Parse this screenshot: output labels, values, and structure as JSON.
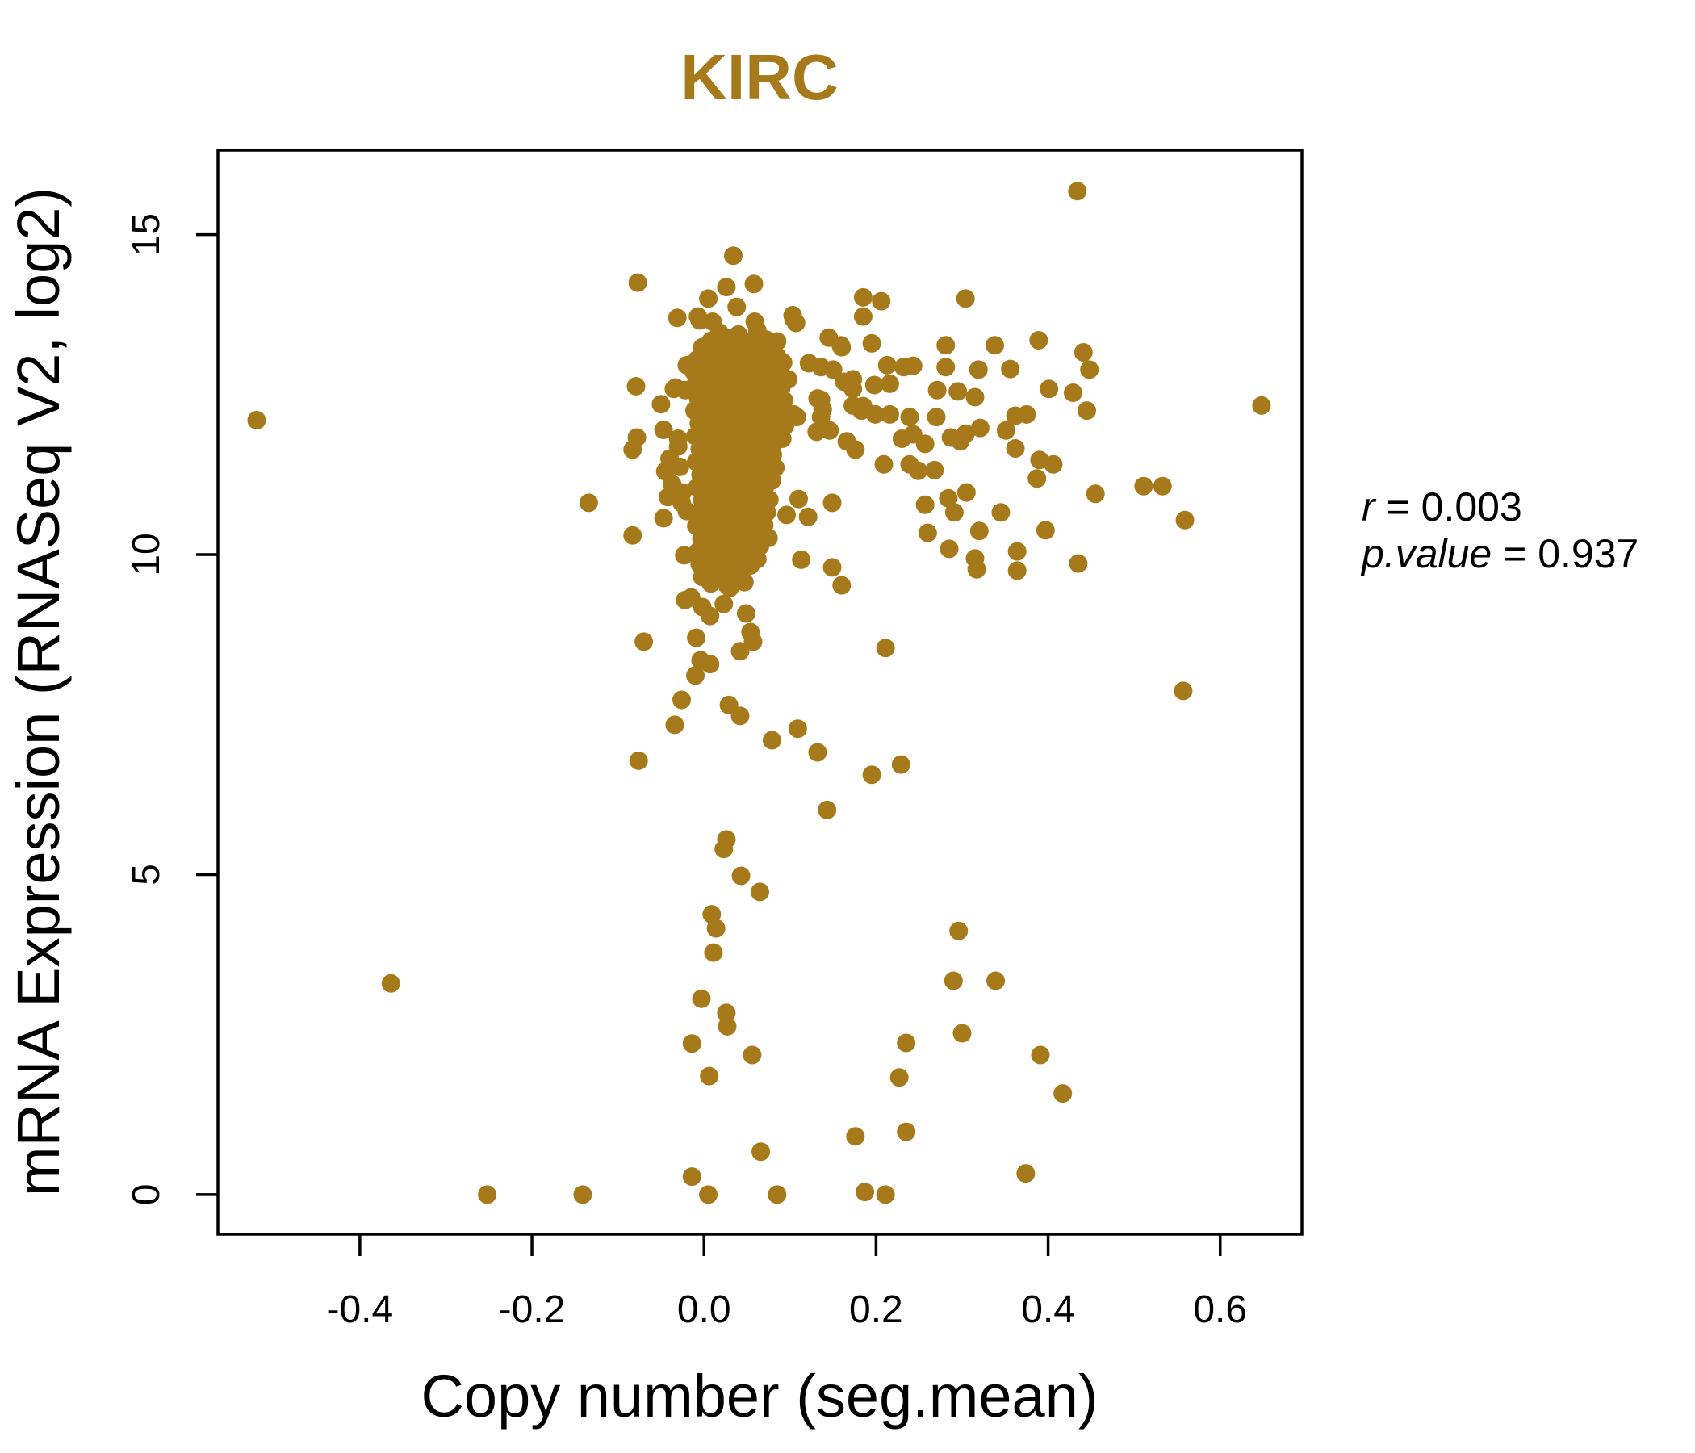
{
  "chart_data": {
    "type": "scatter",
    "title": "KIRC",
    "title_color": "#A6791B",
    "xlabel": "Copy number (seg.mean)",
    "ylabel": "mRNA Expression (RNASeq V2, log2)",
    "xlim": [
      -0.565,
      0.695
    ],
    "ylim": [
      -0.62,
      16.32
    ],
    "x_ticks": [
      -0.4,
      -0.2,
      0.0,
      0.2,
      0.4,
      0.6
    ],
    "x_tick_labels": [
      "-0.4",
      "-0.2",
      "0.0",
      "0.2",
      "0.4",
      "0.6"
    ],
    "y_ticks": [
      0,
      5,
      10,
      15
    ],
    "y_tick_labels": [
      "0",
      "5",
      "10",
      "15"
    ],
    "grid": false,
    "legend": null,
    "point_color": "#A6791B",
    "annotation_lines": [
      {
        "var": "r",
        "eq": " = ",
        "val": "0.003"
      },
      {
        "var": "p.value",
        "eq": " = ",
        "val": "0.937"
      }
    ],
    "points": [
      [
        -0.52,
        12.1
      ],
      [
        0.434,
        15.68
      ],
      [
        0.648,
        12.33
      ],
      [
        -0.364,
        3.3
      ],
      [
        -0.252,
        0
      ],
      [
        -0.141,
        0
      ],
      [
        0.005,
        0
      ],
      [
        0.085,
        0
      ],
      [
        0.187,
        0.04
      ],
      [
        0.211,
        0
      ],
      [
        0.374,
        0.33
      ],
      [
        -0.014,
        0.28
      ],
      [
        0.066,
        0.67
      ],
      [
        0.176,
        0.91
      ],
      [
        0.235,
        0.98
      ],
      [
        0.006,
        1.85
      ],
      [
        0.056,
        2.18
      ],
      [
        -0.014,
        2.36
      ],
      [
        0.026,
        2.84
      ],
      [
        0.027,
        2.63
      ],
      [
        -0.003,
        3.06
      ],
      [
        0.011,
        3.78
      ],
      [
        0.014,
        4.16
      ],
      [
        0.009,
        4.38
      ],
      [
        0.065,
        4.73
      ],
      [
        0.043,
        4.98
      ],
      [
        0.023,
        5.4
      ],
      [
        0.026,
        5.55
      ],
      [
        0.227,
        1.83
      ],
      [
        0.235,
        2.37
      ],
      [
        0.3,
        2.52
      ],
      [
        0.29,
        3.34
      ],
      [
        0.339,
        3.34
      ],
      [
        0.296,
        4.12
      ],
      [
        0.391,
        2.18
      ],
      [
        0.417,
        1.58
      ],
      [
        0.132,
        6.91
      ],
      [
        0.195,
        6.56
      ],
      [
        0.229,
        6.72
      ],
      [
        0.143,
        6.01
      ],
      [
        0.109,
        7.28
      ],
      [
        0.079,
        7.1
      ],
      [
        -0.076,
        6.78
      ],
      [
        -0.034,
        7.34
      ],
      [
        -0.026,
        7.73
      ],
      [
        -0.07,
        8.64
      ],
      [
        0.211,
        8.54
      ],
      [
        0.557,
        7.87
      ],
      [
        0.029,
        7.65
      ],
      [
        0.042,
        7.48
      ],
      [
        -0.01,
        8.11
      ],
      [
        -0.004,
        8.35
      ],
      [
        0.007,
        8.29
      ],
      [
        -0.009,
        8.7
      ],
      [
        0.054,
        8.79
      ],
      [
        0.057,
        8.64
      ],
      [
        0.042,
        8.49
      ],
      [
        0.149,
        9.8
      ],
      [
        0.16,
        9.52
      ],
      [
        0.113,
        9.92
      ],
      [
        -0.022,
        9.29
      ],
      [
        -0.015,
        9.33
      ],
      [
        -0.002,
        9.18
      ],
      [
        0.007,
        9.04
      ],
      [
        0.023,
        9.23
      ],
      [
        0.03,
        9.48
      ],
      [
        0.049,
        9.08
      ],
      [
        -0.023,
        9.99
      ],
      [
        -0.047,
        10.57
      ],
      [
        -0.083,
        10.3
      ],
      [
        -0.134,
        10.81
      ],
      [
        -0.026,
        10.81
      ],
      [
        0.096,
        10.62
      ],
      [
        0.11,
        10.87
      ],
      [
        0.121,
        10.59
      ],
      [
        0.149,
        10.81
      ],
      [
        0.305,
        10.97
      ],
      [
        0.364,
        10.05
      ],
      [
        0.364,
        9.75
      ],
      [
        0.257,
        10.78
      ],
      [
        0.284,
        10.88
      ],
      [
        0.291,
        10.66
      ],
      [
        0.26,
        10.34
      ],
      [
        0.32,
        10.37
      ],
      [
        0.285,
        10.09
      ],
      [
        0.315,
        9.94
      ],
      [
        0.317,
        9.77
      ],
      [
        0.345,
        10.66
      ],
      [
        0.397,
        10.38
      ],
      [
        0.559,
        10.54
      ],
      [
        0.435,
        9.86
      ],
      [
        0.455,
        10.95
      ],
      [
        0.511,
        11.07
      ],
      [
        0.533,
        11.07
      ],
      [
        0.39,
        11.48
      ],
      [
        0.406,
        11.41
      ],
      [
        0.387,
        11.19
      ],
      [
        0.375,
        12.19
      ],
      [
        0.401,
        12.59
      ],
      [
        0.429,
        12.53
      ],
      [
        0.445,
        12.25
      ],
      [
        0.448,
        12.89
      ],
      [
        0.441,
        13.16
      ],
      [
        0.389,
        13.35
      ],
      [
        0.034,
        14.67
      ],
      [
        0.026,
        14.18
      ],
      [
        0.005,
        14.0
      ],
      [
        0.058,
        14.23
      ],
      [
        0.038,
        13.87
      ],
      [
        -0.077,
        14.25
      ],
      [
        -0.031,
        13.7
      ],
      [
        -0.007,
        13.72
      ],
      [
        -0.005,
        13.66
      ],
      [
        0.01,
        13.64
      ],
      [
        0.059,
        13.64
      ],
      [
        0.103,
        13.74
      ],
      [
        0.107,
        13.62
      ],
      [
        0.185,
        14.02
      ],
      [
        0.206,
        13.96
      ],
      [
        0.185,
        13.72
      ],
      [
        0.304,
        14.0
      ],
      [
        0.085,
        13.33
      ],
      [
        0.145,
        13.39
      ],
      [
        0.159,
        13.27
      ],
      [
        0.195,
        13.3
      ],
      [
        0.281,
        13.27
      ],
      [
        0.338,
        13.27
      ],
      [
        0.122,
        12.99
      ],
      [
        0.136,
        12.93
      ],
      [
        0.15,
        12.89
      ],
      [
        0.213,
        12.96
      ],
      [
        0.232,
        12.93
      ],
      [
        0.243,
        12.95
      ],
      [
        0.281,
        12.93
      ],
      [
        0.319,
        12.89
      ],
      [
        0.356,
        12.9
      ],
      [
        0.094,
        12.71
      ],
      [
        0.098,
        12.74
      ],
      [
        0.163,
        12.7
      ],
      [
        0.173,
        12.59
      ],
      [
        0.198,
        12.65
      ],
      [
        0.216,
        12.67
      ],
      [
        0.271,
        12.57
      ],
      [
        0.295,
        12.55
      ],
      [
        0.315,
        12.46
      ],
      [
        0.362,
        12.17
      ],
      [
        0.132,
        12.44
      ],
      [
        0.138,
        12.27
      ],
      [
        0.185,
        12.32
      ],
      [
        0.199,
        12.19
      ],
      [
        0.216,
        12.19
      ],
      [
        0.239,
        12.15
      ],
      [
        0.27,
        12.15
      ],
      [
        0.108,
        12.15
      ],
      [
        0.104,
        12.19
      ],
      [
        0.131,
        11.92
      ],
      [
        0.146,
        11.94
      ],
      [
        0.166,
        11.77
      ],
      [
        0.176,
        11.64
      ],
      [
        0.23,
        11.81
      ],
      [
        0.243,
        11.88
      ],
      [
        0.257,
        11.73
      ],
      [
        0.287,
        11.83
      ],
      [
        0.304,
        11.89
      ],
      [
        0.321,
        11.98
      ],
      [
        0.351,
        11.94
      ],
      [
        0.209,
        11.41
      ],
      [
        0.239,
        11.41
      ],
      [
        0.249,
        11.31
      ],
      [
        0.268,
        11.32
      ],
      [
        0.298,
        11.77
      ],
      [
        0.362,
        11.66
      ],
      [
        0.173,
        12.74
      ],
      [
        0.173,
        12.33
      ],
      [
        0.183,
        12.25
      ],
      [
        0.16,
        13.24
      ],
      [
        0.136,
        12.42
      ],
      [
        0.136,
        12.15
      ],
      [
        0.08,
        13.28
      ],
      [
        0.104,
        13.68
      ],
      [
        -0.02,
        12.96
      ],
      [
        -0.035,
        12.59
      ],
      [
        -0.022,
        12.57
      ],
      [
        -0.079,
        12.63
      ],
      [
        -0.033,
        12.61
      ],
      [
        -0.078,
        11.83
      ],
      [
        -0.083,
        11.64
      ],
      [
        -0.03,
        11.81
      ],
      [
        -0.03,
        11.69
      ],
      [
        -0.028,
        11.37
      ],
      [
        -0.037,
        11.1
      ],
      [
        -0.025,
        10.97
      ],
      [
        -0.05,
        12.35
      ],
      [
        -0.047,
        11.95
      ],
      [
        -0.04,
        11.5
      ],
      [
        -0.045,
        11.3
      ],
      [
        -0.042,
        10.9
      ],
      [
        -0.02,
        10.68
      ],
      [
        0.018,
        13.47
      ],
      [
        0.04,
        13.44
      ],
      [
        0.062,
        13.5
      ],
      [
        0.008,
        13.34
      ],
      [
        0.028,
        13.38
      ],
      [
        0.051,
        13.32
      ],
      [
        0.072,
        13.36
      ],
      [
        -0.002,
        13.24
      ],
      [
        0.016,
        13.27
      ],
      [
        0.035,
        13.22
      ],
      [
        0.055,
        13.26
      ],
      [
        0.078,
        13.21
      ],
      [
        0.005,
        13.16
      ],
      [
        0.024,
        13.12
      ],
      [
        0.044,
        13.17
      ],
      [
        0.064,
        13.13
      ],
      [
        0.085,
        13.1
      ],
      [
        -0.008,
        13.05
      ],
      [
        0.012,
        13.02
      ],
      [
        0.031,
        13.07
      ],
      [
        0.05,
        13.03
      ],
      [
        0.07,
        13.06
      ],
      [
        0.092,
        13.0
      ],
      [
        0.002,
        12.95
      ],
      [
        0.02,
        12.92
      ],
      [
        0.039,
        12.97
      ],
      [
        0.058,
        12.93
      ],
      [
        0.077,
        12.96
      ],
      [
        -0.012,
        12.86
      ],
      [
        0.008,
        12.83
      ],
      [
        0.027,
        12.88
      ],
      [
        0.046,
        12.84
      ],
      [
        0.066,
        12.87
      ],
      [
        0.088,
        12.82
      ],
      [
        0.0,
        12.76
      ],
      [
        0.018,
        12.72
      ],
      [
        0.037,
        12.77
      ],
      [
        0.056,
        12.73
      ],
      [
        0.075,
        12.76
      ],
      [
        -0.01,
        12.65
      ],
      [
        0.01,
        12.62
      ],
      [
        0.029,
        12.67
      ],
      [
        0.048,
        12.63
      ],
      [
        0.068,
        12.66
      ],
      [
        0.09,
        12.61
      ],
      [
        0.003,
        12.55
      ],
      [
        0.022,
        12.52
      ],
      [
        0.041,
        12.57
      ],
      [
        0.06,
        12.53
      ],
      [
        0.08,
        12.56
      ],
      [
        -0.007,
        12.45
      ],
      [
        0.013,
        12.42
      ],
      [
        0.032,
        12.47
      ],
      [
        0.051,
        12.43
      ],
      [
        0.071,
        12.46
      ],
      [
        0.093,
        12.41
      ],
      [
        0.001,
        12.35
      ],
      [
        0.019,
        12.32
      ],
      [
        0.038,
        12.37
      ],
      [
        0.057,
        12.33
      ],
      [
        0.076,
        12.36
      ],
      [
        -0.011,
        12.25
      ],
      [
        0.009,
        12.22
      ],
      [
        0.028,
        12.27
      ],
      [
        0.047,
        12.23
      ],
      [
        0.067,
        12.26
      ],
      [
        0.089,
        12.21
      ],
      [
        0.004,
        12.15
      ],
      [
        0.023,
        12.12
      ],
      [
        0.042,
        12.17
      ],
      [
        0.061,
        12.13
      ],
      [
        0.081,
        12.16
      ],
      [
        -0.006,
        12.05
      ],
      [
        0.014,
        12.02
      ],
      [
        0.033,
        12.07
      ],
      [
        0.052,
        12.03
      ],
      [
        0.072,
        12.06
      ],
      [
        0.094,
        12.01
      ],
      [
        0.002,
        11.95
      ],
      [
        0.021,
        11.92
      ],
      [
        0.04,
        11.97
      ],
      [
        0.059,
        11.93
      ],
      [
        0.079,
        11.96
      ],
      [
        -0.01,
        11.85
      ],
      [
        0.011,
        11.82
      ],
      [
        0.03,
        11.87
      ],
      [
        0.049,
        11.83
      ],
      [
        0.069,
        11.86
      ],
      [
        0.091,
        11.81
      ],
      [
        0.005,
        11.75
      ],
      [
        0.024,
        11.72
      ],
      [
        0.043,
        11.77
      ],
      [
        0.062,
        11.73
      ],
      [
        0.082,
        11.76
      ],
      [
        -0.005,
        11.65
      ],
      [
        0.015,
        11.62
      ],
      [
        0.034,
        11.67
      ],
      [
        0.053,
        11.63
      ],
      [
        0.073,
        11.66
      ],
      [
        0.003,
        11.55
      ],
      [
        0.022,
        11.52
      ],
      [
        0.041,
        11.57
      ],
      [
        0.06,
        11.53
      ],
      [
        0.08,
        11.56
      ],
      [
        -0.009,
        11.45
      ],
      [
        0.012,
        11.42
      ],
      [
        0.031,
        11.47
      ],
      [
        0.05,
        11.43
      ],
      [
        0.07,
        11.46
      ],
      [
        0.006,
        11.35
      ],
      [
        0.025,
        11.32
      ],
      [
        0.044,
        11.37
      ],
      [
        0.063,
        11.33
      ],
      [
        0.083,
        11.36
      ],
      [
        -0.004,
        11.25
      ],
      [
        0.016,
        11.22
      ],
      [
        0.035,
        11.27
      ],
      [
        0.054,
        11.23
      ],
      [
        0.074,
        11.26
      ],
      [
        0.002,
        11.15
      ],
      [
        0.021,
        11.12
      ],
      [
        0.04,
        11.17
      ],
      [
        0.059,
        11.13
      ],
      [
        0.079,
        11.16
      ],
      [
        -0.008,
        11.05
      ],
      [
        0.013,
        11.02
      ],
      [
        0.032,
        11.07
      ],
      [
        0.051,
        11.03
      ],
      [
        0.071,
        11.06
      ],
      [
        0.005,
        10.95
      ],
      [
        0.024,
        10.92
      ],
      [
        0.043,
        10.97
      ],
      [
        0.062,
        10.93
      ],
      [
        -0.002,
        10.85
      ],
      [
        0.018,
        10.82
      ],
      [
        0.037,
        10.87
      ],
      [
        0.056,
        10.83
      ],
      [
        0.076,
        10.86
      ],
      [
        0.008,
        10.75
      ],
      [
        0.027,
        10.72
      ],
      [
        0.046,
        10.77
      ],
      [
        0.066,
        10.73
      ],
      [
        -0.006,
        10.65
      ],
      [
        0.014,
        10.62
      ],
      [
        0.033,
        10.67
      ],
      [
        0.052,
        10.63
      ],
      [
        0.073,
        10.66
      ],
      [
        0.003,
        10.55
      ],
      [
        0.022,
        10.52
      ],
      [
        0.041,
        10.57
      ],
      [
        0.061,
        10.53
      ],
      [
        -0.009,
        10.45
      ],
      [
        0.011,
        10.42
      ],
      [
        0.03,
        10.47
      ],
      [
        0.049,
        10.43
      ],
      [
        0.07,
        10.46
      ],
      [
        0.005,
        10.35
      ],
      [
        0.024,
        10.32
      ],
      [
        0.044,
        10.37
      ],
      [
        0.063,
        10.33
      ],
      [
        -0.003,
        10.25
      ],
      [
        0.017,
        10.22
      ],
      [
        0.036,
        10.27
      ],
      [
        0.055,
        10.23
      ],
      [
        0.075,
        10.26
      ],
      [
        0.007,
        10.15
      ],
      [
        0.026,
        10.12
      ],
      [
        0.045,
        10.17
      ],
      [
        0.065,
        10.13
      ],
      [
        -0.007,
        10.05
      ],
      [
        0.013,
        10.02
      ],
      [
        0.032,
        10.07
      ],
      [
        0.051,
        10.03
      ],
      [
        0.004,
        9.95
      ],
      [
        0.023,
        9.92
      ],
      [
        0.042,
        9.97
      ],
      [
        0.062,
        9.93
      ],
      [
        -0.005,
        9.85
      ],
      [
        0.015,
        9.82
      ],
      [
        0.034,
        9.87
      ],
      [
        0.054,
        9.83
      ],
      [
        0.006,
        9.75
      ],
      [
        0.025,
        9.72
      ],
      [
        0.044,
        9.77
      ],
      [
        -0.002,
        9.65
      ],
      [
        0.018,
        9.62
      ],
      [
        0.037,
        9.67
      ],
      [
        0.008,
        9.55
      ],
      [
        0.027,
        9.52
      ],
      [
        0.047,
        9.57
      ]
    ]
  }
}
